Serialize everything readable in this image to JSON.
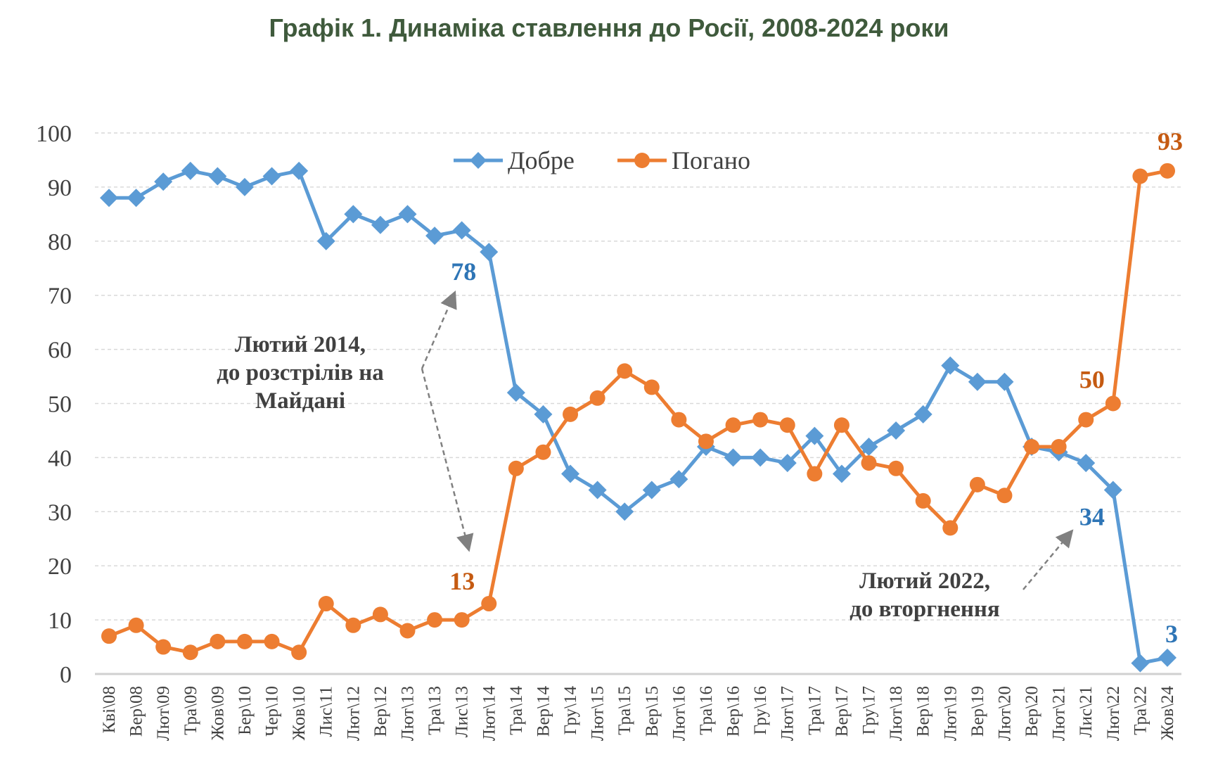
{
  "chart_data": {
    "type": "line",
    "title": "Графік 1. Динаміка ставлення до Росії, 2008-2024 роки",
    "xlabel": "",
    "ylabel": "",
    "ylim": [
      0,
      100
    ],
    "yticks": [
      0,
      10,
      20,
      30,
      40,
      50,
      60,
      70,
      80,
      90,
      100
    ],
    "grid": true,
    "legend_position": "top-center",
    "categories": [
      "Кві\\08",
      "Вер\\08",
      "Лют\\09",
      "Тра\\09",
      "Жов\\09",
      "Бер\\10",
      "Чер\\10",
      "Жов\\10",
      "Лис\\11",
      "Лют\\12",
      "Вер\\12",
      "Лют\\13",
      "Тра\\13",
      "Лис\\13",
      "Лют\\14",
      "Тра\\14",
      "Вер\\14",
      "Гру\\14",
      "Лют\\15",
      "Тра\\15",
      "Вер\\15",
      "Лют\\16",
      "Тра\\16",
      "Вер\\16",
      "Гру\\16",
      "Лют\\17",
      "Тра\\17",
      "Вер\\17",
      "Гру\\17",
      "Лют\\18",
      "Вер\\18",
      "Лют\\19",
      "Вер\\19",
      "Лют\\20",
      "Вер\\20",
      "Лют\\21",
      "Лис\\21",
      "Лют\\22",
      "Тра\\22",
      "Жов\\24"
    ],
    "series": [
      {
        "name": "Добре",
        "color": "#5b9bd5",
        "label_color": "#2e75b6",
        "marker": "diamond",
        "values": [
          88,
          88,
          91,
          93,
          92,
          90,
          92,
          93,
          80,
          85,
          83,
          85,
          81,
          82,
          78,
          52,
          48,
          37,
          34,
          30,
          34,
          36,
          42,
          40,
          40,
          39,
          44,
          37,
          42,
          45,
          48,
          57,
          54,
          54,
          42,
          41,
          39,
          34,
          2,
          3
        ]
      },
      {
        "name": "Погано",
        "color": "#ed7d31",
        "label_color": "#c55a11",
        "marker": "circle",
        "values": [
          7,
          9,
          5,
          4,
          6,
          6,
          6,
          4,
          13,
          9,
          11,
          8,
          10,
          10,
          13,
          38,
          41,
          48,
          51,
          56,
          53,
          47,
          43,
          46,
          47,
          46,
          37,
          46,
          39,
          38,
          32,
          27,
          35,
          33,
          42,
          42,
          47,
          50,
          92,
          93
        ]
      }
    ],
    "data_labels": [
      {
        "series": 0,
        "index": 14,
        "text": "78"
      },
      {
        "series": 1,
        "index": 14,
        "text": "13"
      },
      {
        "series": 1,
        "index": 37,
        "text": "50"
      },
      {
        "series": 1,
        "index": 39,
        "text": "93"
      },
      {
        "series": 0,
        "index": 37,
        "text": "34"
      },
      {
        "series": 0,
        "index": 39,
        "text": "3"
      }
    ],
    "annotations": [
      {
        "lines": [
          "Лютий 2014,",
          "до розстрілів на",
          "Майдані"
        ]
      },
      {
        "lines": [
          "Лютий 2022,",
          "до вторгнення"
        ]
      }
    ]
  }
}
